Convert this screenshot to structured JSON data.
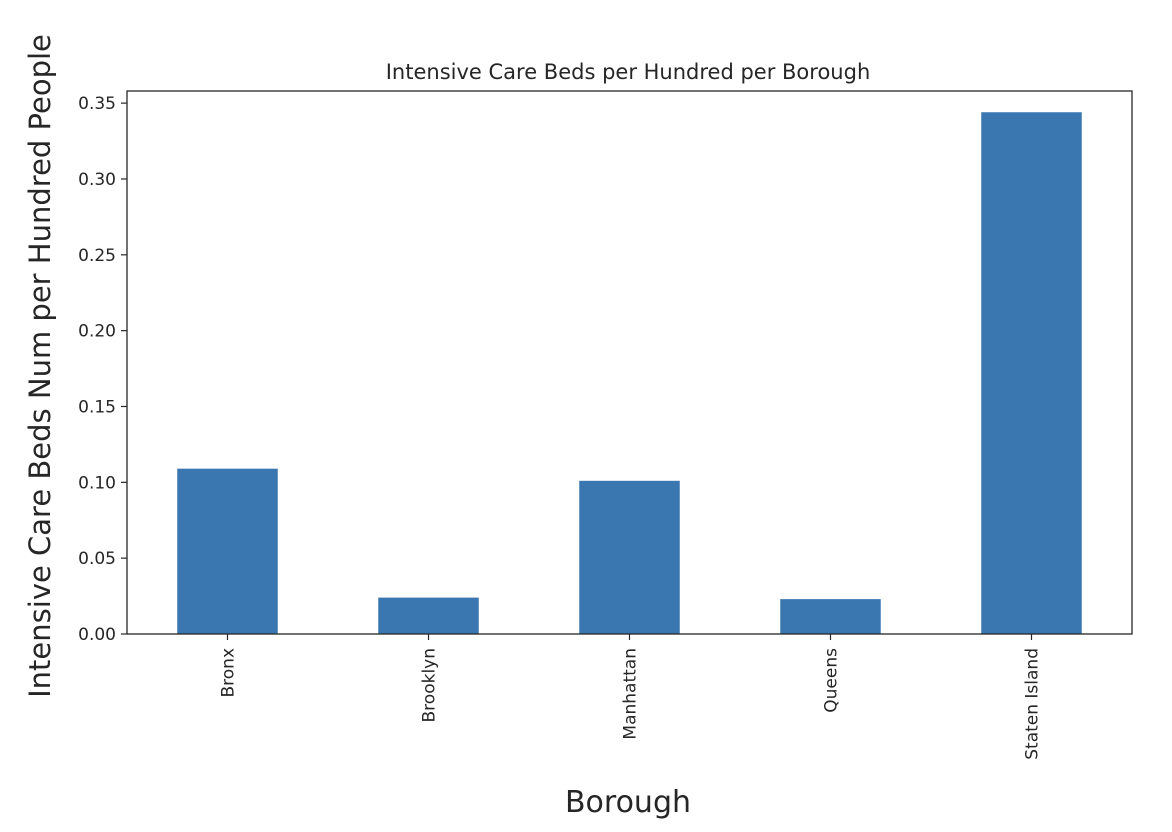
{
  "chart_data": {
    "type": "bar",
    "title": "Intensive Care Beds per Hundred per Borough",
    "xlabel": "Borough",
    "ylabel": "Intensive Care Beds Num per Hundred People",
    "categories": [
      "Bronx",
      "Brooklyn",
      "Manhattan",
      "Queens",
      "Staten Island"
    ],
    "values": [
      0.109,
      0.024,
      0.101,
      0.023,
      0.344
    ],
    "ylim": [
      0,
      0.358
    ],
    "yticks": [
      "0.00",
      "0.05",
      "0.10",
      "0.15",
      "0.20",
      "0.25",
      "0.30",
      "0.35"
    ],
    "grid": false,
    "legend": "none",
    "bar_color": "#3a76af"
  }
}
